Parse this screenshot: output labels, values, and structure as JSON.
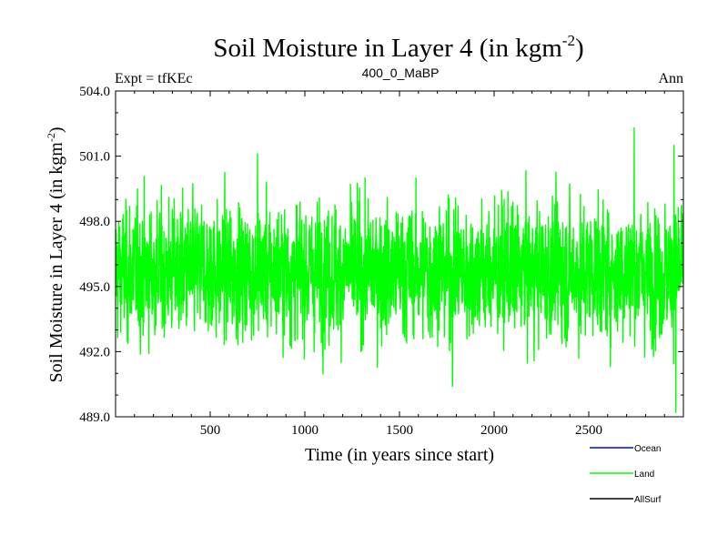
{
  "chart_data": {
    "type": "line",
    "title": "Soil Moisture in Layer 4 (in kgm",
    "title_sup": "-2",
    "title_close": ")",
    "left_label": "Expt = tfKEc",
    "center_label": "400_0_MaBP",
    "right_label": "Ann",
    "xlabel": "Time (in years since start)",
    "ylabel": "Soil Moisture in Layer 4 (in kgm",
    "ylabel_sup": "-2",
    "ylabel_close": ")",
    "xlim": [
      0,
      3000
    ],
    "ylim": [
      489.0,
      504.0
    ],
    "xticks": [
      500,
      1000,
      1500,
      2000,
      2500
    ],
    "xtick_labels": [
      "500",
      "1000",
      "1500",
      "2000",
      "2500"
    ],
    "yticks": [
      489.0,
      492.0,
      495.0,
      498.0,
      501.0,
      504.0
    ],
    "ytick_labels": [
      "489.0",
      "492.0",
      "495.0",
      "498.0",
      "501.0",
      "504.0"
    ],
    "legend": [
      {
        "name": "Ocean",
        "color": "#0000ff"
      },
      {
        "name": "Land",
        "color": "#00ff00"
      },
      {
        "name": "AllSurf",
        "color": "#000000"
      }
    ],
    "series": [
      {
        "name": "Land",
        "color": "#00ff00",
        "x_start": 1,
        "x_step": 1,
        "count": 3000,
        "mean": 495.7,
        "std": 1.45,
        "min": 489.2,
        "max": 502.3,
        "extremes": [
          {
            "x": 750,
            "y": 501.1
          },
          {
            "x": 1780,
            "y": 490.4
          },
          {
            "x": 2740,
            "y": 502.3
          },
          {
            "x": 2950,
            "y": 501.5
          },
          {
            "x": 2960,
            "y": 489.2
          }
        ]
      }
    ]
  }
}
